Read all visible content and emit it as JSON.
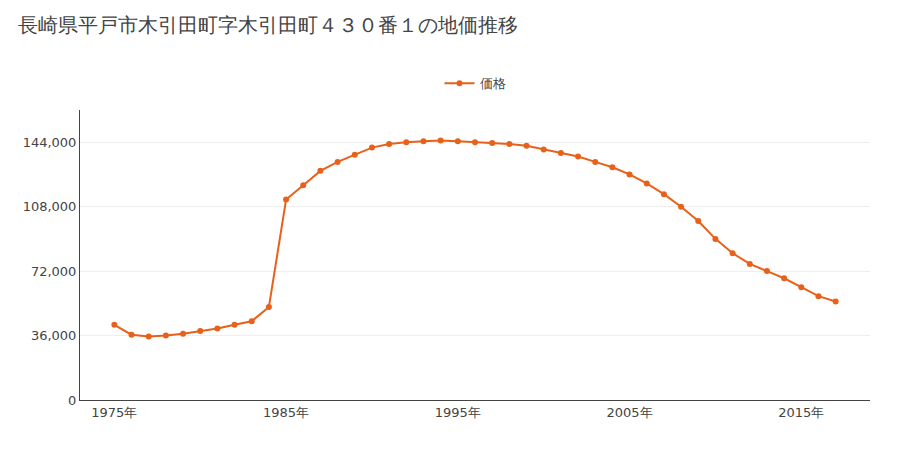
{
  "chart_data": {
    "type": "line",
    "title": "長崎県平戸市木引田町字木引田町４３０番１の地価推移",
    "x": [
      1975,
      1976,
      1977,
      1978,
      1979,
      1980,
      1981,
      1982,
      1983,
      1984,
      1985,
      1986,
      1987,
      1988,
      1989,
      1990,
      1991,
      1992,
      1993,
      1994,
      1995,
      1996,
      1997,
      1998,
      1999,
      2000,
      2001,
      2002,
      2003,
      2004,
      2005,
      2006,
      2007,
      2008,
      2009,
      2010,
      2011,
      2012,
      2013,
      2014,
      2015,
      2016,
      2017
    ],
    "series": [
      {
        "name": "価格",
        "color": "#E8611A",
        "marker": "circle",
        "values": [
          42000,
          36500,
          35500,
          36000,
          37000,
          38500,
          40000,
          42000,
          44000,
          52000,
          112000,
          120000,
          128000,
          133000,
          137000,
          141000,
          143000,
          144000,
          144500,
          145000,
          144500,
          144000,
          143500,
          143000,
          142000,
          140000,
          138000,
          136000,
          133000,
          130000,
          126000,
          121000,
          115000,
          108000,
          100000,
          90000,
          82000,
          76000,
          72000,
          68000,
          63000,
          58000,
          55000
        ]
      }
    ],
    "xlim": [
      1973,
      2019
    ],
    "xticks": [
      {
        "value": 1975,
        "label": "1975年"
      },
      {
        "value": 1985,
        "label": "1985年"
      },
      {
        "value": 1995,
        "label": "1995年"
      },
      {
        "value": 2005,
        "label": "2005年"
      },
      {
        "value": 2015,
        "label": "2015年"
      }
    ],
    "ylim": [
      0,
      162000
    ],
    "yticks": [
      0,
      {
        "value": 36000,
        "label": "36,000"
      },
      {
        "value": 72000,
        "label": "72,000"
      },
      {
        "value": 108000,
        "label": "108,000"
      },
      {
        "value": 144000,
        "label": "144,000"
      }
    ],
    "grid": "y",
    "legend": "top"
  }
}
